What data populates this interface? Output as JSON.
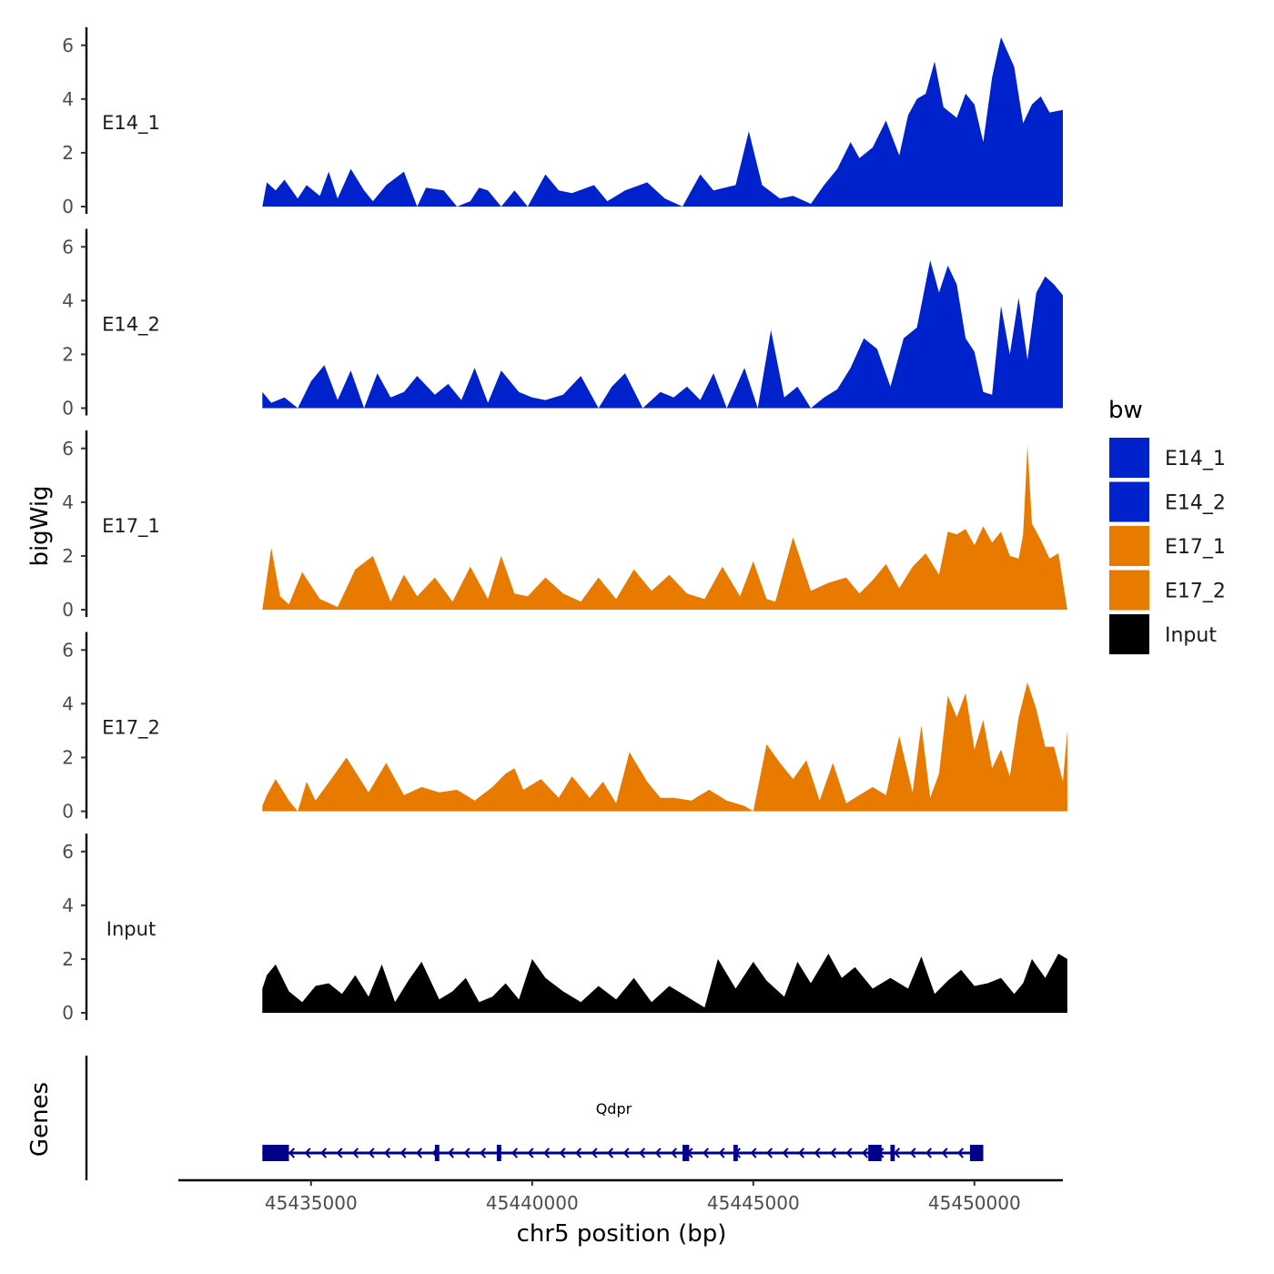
{
  "chart_data": {
    "type": "area",
    "ylabel": "bigWig",
    "xlabel": "chr5 position (bp)",
    "gene_panel_label": "Genes",
    "xlim": [
      45432000,
      45452000
    ],
    "ylim": [
      0,
      6.5
    ],
    "y_ticks": [
      0,
      2,
      4,
      6
    ],
    "x_ticks": [
      45435000,
      45440000,
      45445000,
      45450000
    ],
    "x_tick_labels": [
      "45435000",
      "45440000",
      "45445000",
      "45450000"
    ],
    "legend": {
      "title": "bw",
      "entries": [
        {
          "label": "E14_1",
          "color": "#0022cc"
        },
        {
          "label": "E14_2",
          "color": "#0022cc"
        },
        {
          "label": "E17_1",
          "color": "#e87a00"
        },
        {
          "label": "E17_2",
          "color": "#e87a00"
        },
        {
          "label": "Input",
          "color": "#000000"
        }
      ]
    },
    "series": [
      {
        "name": "E14_1",
        "color": "#0022cc",
        "x": [
          45433900,
          45434000,
          45434200,
          45434400,
          45434700,
          45434900,
          45435200,
          45435400,
          45435600,
          45435900,
          45436200,
          45436400,
          45436700,
          45437100,
          45437400,
          45437600,
          45438000,
          45438300,
          45438600,
          45438800,
          45439000,
          45439300,
          45439600,
          45439900,
          45440300,
          45440600,
          45440900,
          45441400,
          45441700,
          45442100,
          45442600,
          45443000,
          45443400,
          45443800,
          45444100,
          45444600,
          45444900,
          45445200,
          45445600,
          45445900,
          45446300,
          45446600,
          45446900,
          45447200,
          45447400,
          45447700,
          45448000,
          45448300,
          45448500,
          45448700,
          45448900,
          45449100,
          45449300,
          45449600,
          45449800,
          45450000,
          45450200,
          45450400,
          45450600,
          45450900,
          45451100,
          45451300,
          45451500,
          45451700,
          45452000
        ],
        "y": [
          0,
          0.9,
          0.6,
          1.0,
          0.3,
          0.8,
          0.4,
          1.3,
          0.3,
          1.4,
          0.6,
          0.2,
          0.8,
          1.3,
          0,
          0.7,
          0.6,
          0,
          0.2,
          0.7,
          0.6,
          0,
          0.6,
          0,
          1.2,
          0.6,
          0.5,
          0.8,
          0.2,
          0.6,
          0.9,
          0.3,
          0,
          1.2,
          0.6,
          0.8,
          2.8,
          0.8,
          0.3,
          0.4,
          0.1,
          0.8,
          1.4,
          2.4,
          1.8,
          2.2,
          3.2,
          1.9,
          3.4,
          4.0,
          4.2,
          5.4,
          3.7,
          3.3,
          4.2,
          3.8,
          2.4,
          4.8,
          6.3,
          5.2,
          3.1,
          3.8,
          4.1,
          3.5,
          3.6
        ]
      },
      {
        "name": "E14_2",
        "color": "#0022cc",
        "x": [
          45433900,
          45434100,
          45434400,
          45434700,
          45435000,
          45435300,
          45435600,
          45435900,
          45436200,
          45436500,
          45436800,
          45437100,
          45437400,
          45437800,
          45438100,
          45438400,
          45438700,
          45439000,
          45439300,
          45439700,
          45440000,
          45440300,
          45440700,
          45441100,
          45441500,
          45441800,
          45442100,
          45442500,
          45442900,
          45443200,
          45443500,
          45443800,
          45444100,
          45444400,
          45444800,
          45445100,
          45445400,
          45445700,
          45446000,
          45446300,
          45446600,
          45446900,
          45447200,
          45447500,
          45447800,
          45448100,
          45448400,
          45448700,
          45449000,
          45449200,
          45449400,
          45449600,
          45449800,
          45450000,
          45450200,
          45450400,
          45450600,
          45450800,
          45451000,
          45451200,
          45451400,
          45451600,
          45451800,
          45452000
        ],
        "y": [
          0.6,
          0.2,
          0.4,
          0,
          1.0,
          1.6,
          0.3,
          1.4,
          0,
          1.3,
          0.4,
          0.6,
          1.2,
          0.5,
          0.9,
          0.3,
          1.5,
          0.2,
          1.4,
          0.6,
          0.4,
          0.3,
          0.5,
          1.2,
          0,
          0.8,
          1.3,
          0,
          0.6,
          0.4,
          0.8,
          0.3,
          1.3,
          0,
          1.5,
          0,
          2.9,
          0.4,
          0.8,
          0,
          0.4,
          0.7,
          1.5,
          2.6,
          2.2,
          0.8,
          2.6,
          3.0,
          5.5,
          4.3,
          5.3,
          4.6,
          2.6,
          2.1,
          0.6,
          0.5,
          3.8,
          2.0,
          4.1,
          1.8,
          4.3,
          4.9,
          4.6,
          4.2
        ]
      },
      {
        "name": "E17_1",
        "color": "#e87a00",
        "x": [
          45433900,
          45434100,
          45434300,
          45434500,
          45434800,
          45435200,
          45435600,
          45436000,
          45436400,
          45436800,
          45437100,
          45437400,
          45437800,
          45438200,
          45438600,
          45439000,
          45439300,
          45439600,
          45439900,
          45440300,
          45440700,
          45441100,
          45441500,
          45441900,
          45442300,
          45442700,
          45443100,
          45443500,
          45443900,
          45444300,
          45444700,
          45445000,
          45445300,
          45445500,
          45445900,
          45446300,
          45446700,
          45447100,
          45447400,
          45447700,
          45448000,
          45448300,
          45448600,
          45448900,
          45449200,
          45449400,
          45449600,
          45449800,
          45450000,
          45450200,
          45450400,
          45450600,
          45450800,
          45451000,
          45451100,
          45451200,
          45451300,
          45451500,
          45451700,
          45451900,
          45452100
        ],
        "y": [
          0,
          2.3,
          0.5,
          0.2,
          1.4,
          0.4,
          0.1,
          1.5,
          2.0,
          0.3,
          1.3,
          0.5,
          1.2,
          0.3,
          1.6,
          0.4,
          2.0,
          0.6,
          0.5,
          1.2,
          0.6,
          0.3,
          1.2,
          0.4,
          1.5,
          0.7,
          1.3,
          0.6,
          0.4,
          1.6,
          0.5,
          1.8,
          0.4,
          0.3,
          2.7,
          0.7,
          1.0,
          1.2,
          0.6,
          1.1,
          1.7,
          0.8,
          1.6,
          2.1,
          1.3,
          2.9,
          2.8,
          3.0,
          2.4,
          3.1,
          2.5,
          2.9,
          2.0,
          1.9,
          2.8,
          6.1,
          3.2,
          2.6,
          1.9,
          2.1,
          0
        ]
      },
      {
        "name": "E17_2",
        "color": "#e87a00",
        "x": [
          45433900,
          45434000,
          45434200,
          45434500,
          45434700,
          45434900,
          45435100,
          45435500,
          45435800,
          45436300,
          45436700,
          45437100,
          45437500,
          45437900,
          45438300,
          45438700,
          45439100,
          45439400,
          45439600,
          45439800,
          45440200,
          45440600,
          45440900,
          45441300,
          45441600,
          45441900,
          45442200,
          45442600,
          45442900,
          45443200,
          45443600,
          45444000,
          45444400,
          45444800,
          45445000,
          45445300,
          45445600,
          45445900,
          45446200,
          45446500,
          45446800,
          45447100,
          45447400,
          45447700,
          45448000,
          45448300,
          45448600,
          45448800,
          45449000,
          45449200,
          45449400,
          45449600,
          45449800,
          45450000,
          45450200,
          45450400,
          45450600,
          45450800,
          45451000,
          45451200,
          45451400,
          45451600,
          45451800,
          45452000,
          45452100
        ],
        "y": [
          0.2,
          0.6,
          1.2,
          0.4,
          0,
          1.1,
          0.4,
          1.3,
          2.0,
          0.7,
          1.8,
          0.6,
          0.9,
          0.7,
          0.8,
          0.4,
          0.9,
          1.4,
          1.6,
          0.8,
          1.2,
          0.5,
          1.3,
          0.5,
          1.1,
          0.3,
          2.2,
          1.1,
          0.5,
          0.5,
          0.4,
          0.8,
          0.4,
          0.2,
          0,
          2.5,
          1.8,
          1.2,
          1.9,
          0.4,
          1.8,
          0.3,
          0.6,
          0.9,
          0.6,
          2.8,
          0.7,
          3.2,
          0.5,
          1.4,
          4.3,
          3.5,
          4.4,
          2.3,
          3.4,
          1.6,
          2.3,
          1.3,
          3.5,
          4.8,
          3.8,
          2.4,
          2.4,
          1.1,
          3.0
        ]
      },
      {
        "name": "Input",
        "color": "#000000",
        "x": [
          45433900,
          45434000,
          45434200,
          45434500,
          45434800,
          45435100,
          45435400,
          45435700,
          45436000,
          45436300,
          45436600,
          45436900,
          45437200,
          45437500,
          45437900,
          45438200,
          45438500,
          45438800,
          45439100,
          45439400,
          45439700,
          45440000,
          45440300,
          45440700,
          45441100,
          45441500,
          45441900,
          45442300,
          45442700,
          45443100,
          45443500,
          45443900,
          45444200,
          45444600,
          45445000,
          45445300,
          45445700,
          45446000,
          45446300,
          45446700,
          45447000,
          45447300,
          45447700,
          45448100,
          45448500,
          45448800,
          45449100,
          45449400,
          45449700,
          45450000,
          45450300,
          45450600,
          45450900,
          45451100,
          45451300,
          45451600,
          45451900,
          45452100
        ],
        "y": [
          0.9,
          1.4,
          1.8,
          0.8,
          0.4,
          1.0,
          1.1,
          0.7,
          1.4,
          0.6,
          1.8,
          0.4,
          1.2,
          1.9,
          0.5,
          0.8,
          1.3,
          0.4,
          0.6,
          1.1,
          0.5,
          2.0,
          1.3,
          0.8,
          0.4,
          1.0,
          0.5,
          1.3,
          0.4,
          1.0,
          0.6,
          0.2,
          2.0,
          0.9,
          1.9,
          1.2,
          0.6,
          1.9,
          1.1,
          2.2,
          1.3,
          1.7,
          0.9,
          1.3,
          0.9,
          2.1,
          0.7,
          1.2,
          1.6,
          1.0,
          1.1,
          1.3,
          0.7,
          1.1,
          2.0,
          1.3,
          2.2,
          2.0
        ]
      }
    ],
    "genes": [
      {
        "name": "Qdpr",
        "color": "#00008b",
        "strand": "-",
        "start": 45433900,
        "end": 45450200,
        "exons": [
          [
            45433900,
            45434500
          ],
          [
            45437800,
            45437900
          ],
          [
            45439200,
            45439300
          ],
          [
            45443400,
            45443550
          ],
          [
            45444550,
            45444650
          ],
          [
            45447600,
            45447900
          ],
          [
            45448100,
            45448200
          ],
          [
            45449900,
            45450200
          ]
        ]
      }
    ]
  }
}
